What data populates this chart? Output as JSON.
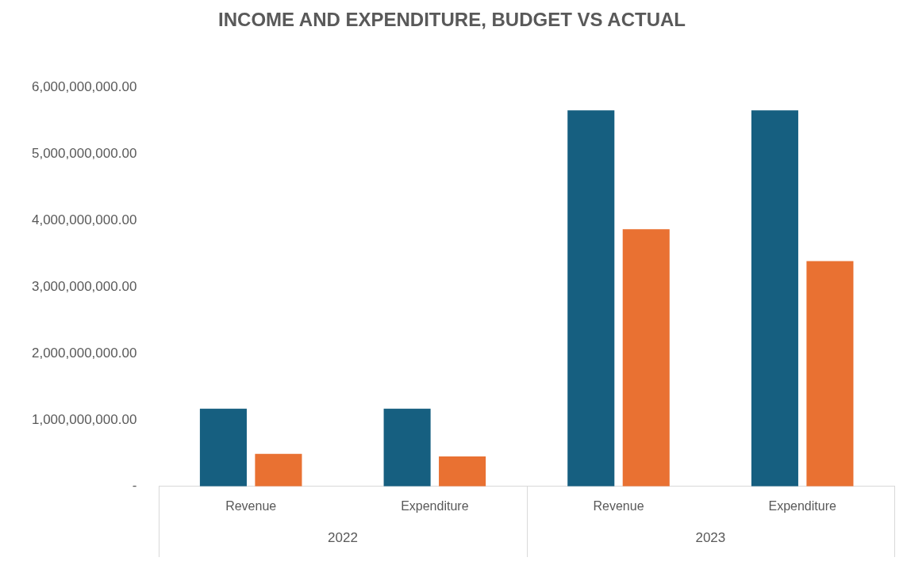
{
  "chart_data": {
    "type": "bar",
    "title": "INCOME AND EXPENDITURE, BUDGET VS ACTUAL",
    "categories": [
      "Revenue",
      "Expenditure",
      "Revenue",
      "Expenditure"
    ],
    "series": [
      {
        "color": "#165f80",
        "values": [
          1170000000,
          1170000000,
          5660000000,
          5660000000
        ]
      },
      {
        "color": "#e97132",
        "values": [
          490000000,
          450000000,
          3870000000,
          3390000000
        ]
      }
    ],
    "annotations": [
      "2022",
      "2023"
    ],
    "ylim": [
      0,
      6000000000
    ],
    "yticks": [
      {
        "value": 0,
        "label": "-"
      },
      {
        "value": 1000000000,
        "label": "1,000,000,000.00"
      },
      {
        "value": 2000000000,
        "label": "2,000,000,000.00"
      },
      {
        "value": 3000000000,
        "label": "3,000,000,000.00"
      },
      {
        "value": 4000000000,
        "label": "4,000,000,000.00"
      },
      {
        "value": 5000000000,
        "label": "5,000,000,000.00"
      },
      {
        "value": 6000000000,
        "label": "6,000,000,000.00"
      }
    ],
    "grid": false,
    "legend": false
  }
}
